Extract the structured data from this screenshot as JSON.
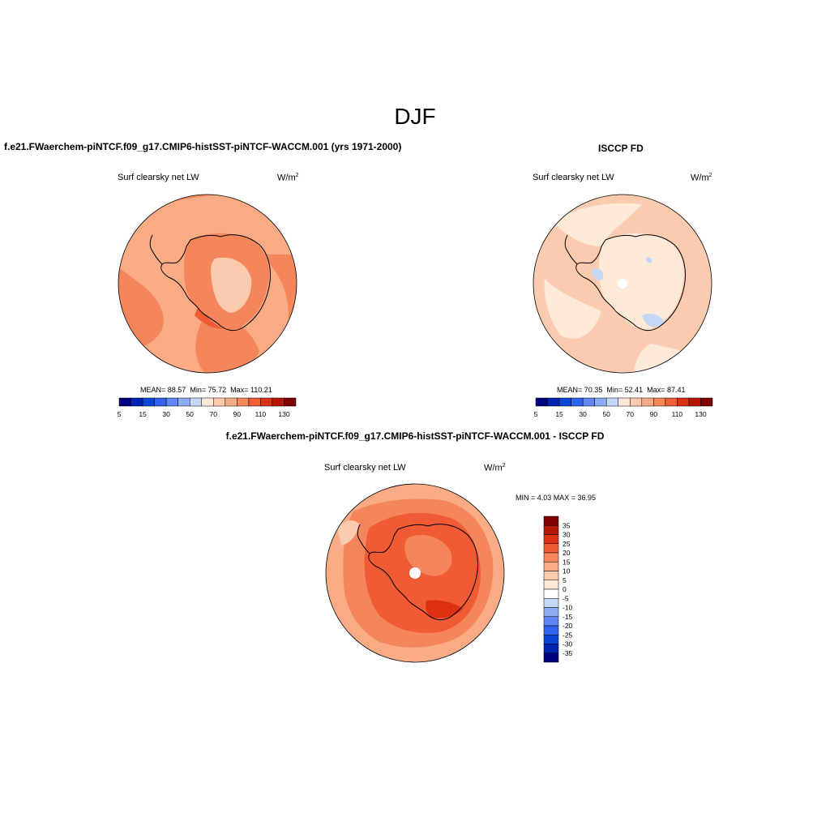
{
  "figure": {
    "title": "DJF"
  },
  "panels": [
    {
      "title": "f.e21.FWaerchem-piNTCF.f09_g17.CMIP6-histSST-piNTCF-WACCM.001 (yrs 1971-2000)",
      "variable": "Surf clearsky net LW",
      "units_base": "W/m",
      "units_exp": "2",
      "stats": {
        "mean_label": "MEAN=",
        "mean": "88.57",
        "min_label": "Min=",
        "min": "75.72",
        "max_label": "Max=",
        "max": "110.21"
      }
    },
    {
      "title": "ISCCP FD",
      "variable": "Surf clearsky net LW",
      "units_base": "W/m",
      "units_exp": "2",
      "stats": {
        "mean_label": "MEAN=",
        "mean": "70.35",
        "min_label": "Min=",
        "min": "52.41",
        "max_label": "Max=",
        "max": "87.41"
      }
    },
    {
      "title": "f.e21.FWaerchem-piNTCF.f09_g17.CMIP6-histSST-piNTCF-WACCM.001 - ISCCP FD",
      "variable": "Surf clearsky net LW",
      "units_base": "W/m",
      "units_exp": "2",
      "minmax_text": "MIN =   4.03 MAX =  36.95"
    }
  ],
  "colorbar_abs": {
    "colors": [
      "#00007f",
      "#0024b2",
      "#0a45d8",
      "#2f63f0",
      "#5e87f4",
      "#8eacf4",
      "#c4d8f6",
      "#fde9d8",
      "#fbcbb0",
      "#f8ab85",
      "#f5865c",
      "#f05a34",
      "#dd2f12",
      "#b71506",
      "#7f0000"
    ],
    "labels": [
      "5",
      "15",
      "30",
      "50",
      "70",
      "90",
      "110",
      "130"
    ]
  },
  "colorbar_diff": {
    "colors": [
      "#00007f",
      "#0024b2",
      "#0a45d8",
      "#2f63f0",
      "#5e87f4",
      "#8eacf4",
      "#c4d8f6",
      "#ffffff",
      "#fde9d8",
      "#fbcbb0",
      "#f8ab85",
      "#f5865c",
      "#f05a34",
      "#dd2f12",
      "#b71506",
      "#7f0000"
    ],
    "labels": [
      "35",
      "30",
      "25",
      "20",
      "15",
      "10",
      "5",
      "0",
      "-5",
      "-10",
      "-15",
      "-20",
      "-25",
      "-30",
      "-35"
    ]
  },
  "map_colors": {
    "p1_base": "#f8ab85",
    "p1_mid": "#f5865c",
    "p1_dark": "#f05a34",
    "p1_light": "#fbcbb0",
    "p2_base": "#fbcbb0",
    "p2_light": "#fde9d8",
    "p2_blue": "#c4d8f6",
    "p3_base": "#f5865c",
    "p3_dark": "#f05a34",
    "p3_darker": "#dd2f12",
    "p3_light": "#f8ab85",
    "p3_lighter": "#fbcbb0"
  }
}
